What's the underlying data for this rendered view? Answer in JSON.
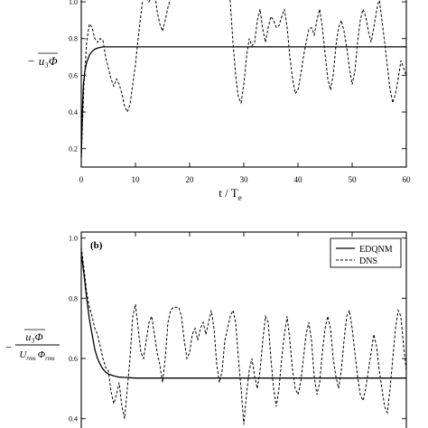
{
  "chart_data": [
    {
      "type": "line",
      "title": "",
      "xlabel": "t / T",
      "xlabel_sub": "e",
      "ylabel_prefix": "−",
      "ylabel_term": "u₃Φ",
      "xlim": [
        0,
        60
      ],
      "ylim": [
        0.1,
        1.02
      ],
      "x_ticks": [
        0,
        10,
        20,
        30,
        40,
        50,
        60
      ],
      "x_tick_labels": [
        "0",
        "10",
        "20",
        "30",
        "40",
        "50",
        "60"
      ],
      "y_ticks": [
        0.2,
        0.4,
        0.6,
        0.8,
        1.0
      ],
      "y_tick_labels": [
        "0.2",
        "0.4",
        "0.6",
        "0.8",
        "1.0"
      ],
      "grid": false,
      "series": [
        {
          "style": "solid",
          "x": [
            0.0,
            0.2,
            0.4,
            0.7,
            1.0,
            1.5,
            2.0,
            2.5,
            3.0,
            3.5,
            4.0,
            5.0,
            6.0,
            10.0,
            20.0,
            30.0,
            40.0,
            50.0,
            60.0
          ],
          "y": [
            0.15,
            0.4,
            0.55,
            0.63,
            0.67,
            0.71,
            0.73,
            0.742,
            0.748,
            0.752,
            0.755,
            0.755,
            0.755,
            0.755,
            0.755,
            0.755,
            0.755,
            0.755,
            0.755
          ]
        },
        {
          "style": "dashed",
          "x": [
            0.0,
            0.5,
            1.0,
            1.5,
            2.0,
            2.5,
            3.0,
            3.5,
            4.0,
            4.5,
            5.0,
            5.5,
            6.0,
            6.5,
            7.0,
            7.5,
            8.0,
            8.5,
            9.0,
            9.5,
            10.0,
            10.5,
            11.0,
            11.5,
            12.0,
            12.5,
            13.0,
            13.5,
            14.0,
            14.5,
            15.0,
            15.5,
            16.0,
            16.5,
            17.0,
            17.5,
            27.0,
            27.5,
            28.0,
            28.5,
            29.0,
            29.5,
            30.0,
            30.5,
            31.0,
            31.5,
            32.0,
            32.5,
            33.0,
            33.5,
            34.0,
            34.5,
            35.0,
            35.5,
            36.0,
            36.5,
            37.0,
            37.5,
            38.0,
            38.5,
            39.0,
            39.5,
            40.0,
            40.5,
            41.0,
            41.5,
            42.0,
            42.5,
            43.0,
            43.5,
            44.0,
            44.5,
            45.0,
            45.5,
            46.0,
            46.5,
            47.0,
            47.5,
            48.0,
            48.5,
            49.0,
            49.5,
            50.0,
            50.5,
            51.0,
            51.5,
            52.0,
            52.5,
            53.0,
            53.5,
            54.0,
            54.5,
            55.0,
            55.5,
            56.0,
            56.5,
            57.0,
            57.5,
            58.0,
            58.5,
            59.0,
            59.5,
            60.0
          ],
          "y": [
            0.15,
            0.55,
            0.78,
            0.88,
            0.86,
            0.8,
            0.78,
            0.8,
            0.79,
            0.7,
            0.64,
            0.58,
            0.54,
            0.58,
            0.55,
            0.5,
            0.43,
            0.4,
            0.44,
            0.55,
            0.66,
            0.8,
            0.93,
            1.05,
            1.02,
            1.0,
            1.03,
            1.06,
            0.95,
            0.88,
            0.84,
            0.9,
            0.97,
            1.02,
            1.06,
            1.1,
            1.1,
            1.0,
            0.78,
            0.6,
            0.48,
            0.45,
            0.55,
            0.7,
            0.8,
            0.76,
            0.78,
            0.9,
            0.96,
            0.85,
            0.78,
            0.86,
            0.92,
            0.9,
            0.86,
            0.87,
            0.92,
            0.96,
            0.86,
            0.7,
            0.58,
            0.5,
            0.52,
            0.6,
            0.7,
            0.78,
            0.85,
            0.86,
            0.82,
            0.9,
            0.96,
            0.86,
            0.72,
            0.58,
            0.52,
            0.6,
            0.76,
            0.86,
            0.9,
            0.84,
            0.75,
            0.64,
            0.55,
            0.62,
            0.78,
            0.9,
            0.96,
            0.92,
            0.84,
            0.78,
            0.86,
            0.95,
            1.02,
            0.9,
            0.78,
            0.65,
            0.52,
            0.45,
            0.5,
            0.58,
            0.68,
            0.64,
            0.6
          ]
        }
      ]
    },
    {
      "type": "line",
      "title": "",
      "panel_label": "(b)",
      "ylabel_prefix": "−",
      "ylabel_num": "u₃Φ",
      "ylabel_den": "U",
      "ylabel_den_sub1": "rms",
      "ylabel_den_mid": "Φ",
      "ylabel_den_sub2": "rms",
      "xlim": [
        0,
        60
      ],
      "ylim": [
        0.33,
        1.02
      ],
      "y_ticks": [
        0.4,
        0.6,
        0.8,
        1.0
      ],
      "y_tick_labels": [
        "0.4",
        "0.6",
        "0.8",
        "1.0"
      ],
      "legend": {
        "placement": "top-right",
        "entries": [
          "EDQNM",
          "DNS"
        ]
      },
      "grid": false,
      "series": [
        {
          "name": "EDQNM",
          "style": "solid",
          "x": [
            0.0,
            0.5,
            1.0,
            1.5,
            2.0,
            2.5,
            3.0,
            3.5,
            4.0,
            4.5,
            5.0,
            6.0,
            7.0,
            8.0,
            9.0,
            10.0,
            20.0,
            30.0,
            40.0,
            50.0,
            60.0
          ],
          "y": [
            0.95,
            0.88,
            0.8,
            0.73,
            0.68,
            0.63,
            0.6,
            0.58,
            0.565,
            0.555,
            0.548,
            0.542,
            0.538,
            0.537,
            0.536,
            0.535,
            0.535,
            0.535,
            0.535,
            0.535,
            0.535
          ]
        },
        {
          "name": "DNS",
          "style": "dashed",
          "x": [
            0.0,
            0.5,
            1.0,
            1.5,
            2.0,
            2.5,
            3.0,
            3.5,
            4.0,
            4.5,
            5.0,
            5.5,
            6.0,
            6.5,
            7.0,
            7.5,
            8.0,
            8.5,
            9.0,
            9.5,
            10.0,
            10.5,
            11.0,
            11.5,
            12.0,
            12.5,
            13.0,
            13.5,
            14.0,
            14.5,
            15.0,
            15.5,
            16.0,
            16.5,
            17.0,
            17.5,
            18.0,
            18.5,
            19.0,
            19.5,
            20.0,
            20.5,
            21.0,
            21.5,
            22.0,
            22.5,
            23.0,
            23.5,
            24.0,
            24.5,
            25.0,
            25.5,
            26.0,
            26.5,
            27.0,
            27.5,
            28.0,
            28.5,
            29.0,
            29.5,
            30.0,
            30.5,
            31.0,
            31.5,
            32.0,
            32.5,
            33.0,
            33.5,
            34.0,
            34.5,
            35.0,
            35.5,
            36.0,
            36.5,
            37.0,
            37.5,
            38.0,
            38.5,
            39.0,
            39.5,
            40.0,
            40.5,
            41.0,
            41.5,
            42.0,
            42.5,
            43.0,
            43.5,
            44.0,
            44.5,
            45.0,
            45.5,
            46.0,
            46.5,
            47.0,
            47.5,
            48.0,
            48.5,
            49.0,
            49.5,
            50.0,
            50.5,
            51.0,
            51.5,
            52.0,
            52.5,
            53.0,
            53.5,
            54.0,
            54.5,
            55.0,
            55.5,
            56.0,
            56.5,
            57.0,
            57.5,
            58.0,
            58.5,
            59.0,
            59.5,
            60.0
          ],
          "y": [
            0.97,
            0.9,
            0.82,
            0.77,
            0.74,
            0.7,
            0.68,
            0.64,
            0.6,
            0.57,
            0.56,
            0.49,
            0.45,
            0.48,
            0.52,
            0.44,
            0.4,
            0.5,
            0.6,
            0.74,
            0.78,
            0.7,
            0.62,
            0.6,
            0.66,
            0.72,
            0.74,
            0.68,
            0.62,
            0.58,
            0.52,
            0.6,
            0.72,
            0.76,
            0.77,
            0.77,
            0.77,
            0.74,
            0.66,
            0.6,
            0.62,
            0.68,
            0.7,
            0.66,
            0.7,
            0.72,
            0.68,
            0.72,
            0.76,
            0.7,
            0.58,
            0.52,
            0.56,
            0.66,
            0.7,
            0.74,
            0.76,
            0.72,
            0.6,
            0.5,
            0.38,
            0.48,
            0.56,
            0.6,
            0.54,
            0.5,
            0.56,
            0.66,
            0.74,
            0.72,
            0.6,
            0.5,
            0.44,
            0.5,
            0.6,
            0.68,
            0.74,
            0.66,
            0.56,
            0.5,
            0.48,
            0.52,
            0.6,
            0.68,
            0.72,
            0.66,
            0.54,
            0.48,
            0.52,
            0.62,
            0.7,
            0.74,
            0.7,
            0.6,
            0.54,
            0.5,
            0.56,
            0.66,
            0.74,
            0.76,
            0.7,
            0.62,
            0.54,
            0.48,
            0.46,
            0.5,
            0.56,
            0.62,
            0.68,
            0.64,
            0.56,
            0.5,
            0.44,
            0.42,
            0.5,
            0.6,
            0.7,
            0.76,
            0.74,
            0.64,
            0.56
          ]
        }
      ]
    }
  ]
}
